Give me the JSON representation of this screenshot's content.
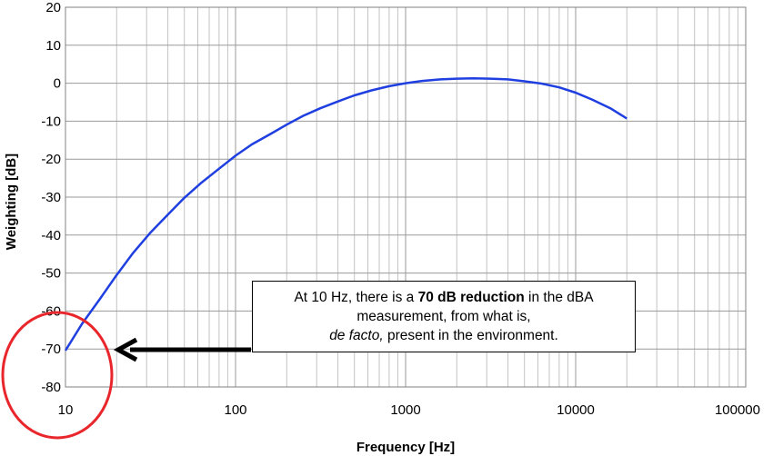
{
  "chart_data": {
    "type": "line",
    "xscale": "log",
    "xlim": [
      10,
      100000
    ],
    "ylim": [
      -80,
      20
    ],
    "xticks": [
      "10",
      "100",
      "1000",
      "10000",
      "100000"
    ],
    "yticks": [
      "20",
      "10",
      "0",
      "-10",
      "-20",
      "-30",
      "-40",
      "-50",
      "-60",
      "-70",
      "-80"
    ],
    "xlabel": "Frequency [Hz]",
    "ylabel": "Weighting [dB]",
    "grid": true,
    "line_color": "#1f3fe0",
    "series": [
      {
        "x": [
          10,
          12.5,
          16,
          20,
          25,
          31.5,
          40,
          50,
          63,
          80,
          100,
          125,
          160,
          200,
          250,
          315,
          400,
          500,
          630,
          800,
          1000,
          1250,
          1600,
          2000,
          2500,
          3150,
          4000,
          5000,
          6300,
          8000,
          10000,
          12500,
          16000,
          20000
        ],
        "y": [
          -70.4,
          -63.4,
          -56.7,
          -50.5,
          -44.7,
          -39.4,
          -34.6,
          -30.2,
          -26.2,
          -22.5,
          -19.1,
          -16.1,
          -13.4,
          -10.9,
          -8.6,
          -6.6,
          -4.8,
          -3.2,
          -1.9,
          -0.8,
          0.0,
          0.6,
          1.0,
          1.2,
          1.3,
          1.2,
          1.0,
          0.5,
          -0.1,
          -1.1,
          -2.5,
          -4.3,
          -6.6,
          -9.3
        ]
      }
    ]
  },
  "annotation": {
    "line1_pre": "At 10 Hz, there is a ",
    "line1_bold": "70 dB reduction",
    "line1_post": " in the dBA",
    "line2": "measurement, from what is,",
    "line3_italic": "de facto,",
    "line3_post": " present in the environment.",
    "circle_color": "#e8262b",
    "arrow_color": "#000000"
  }
}
